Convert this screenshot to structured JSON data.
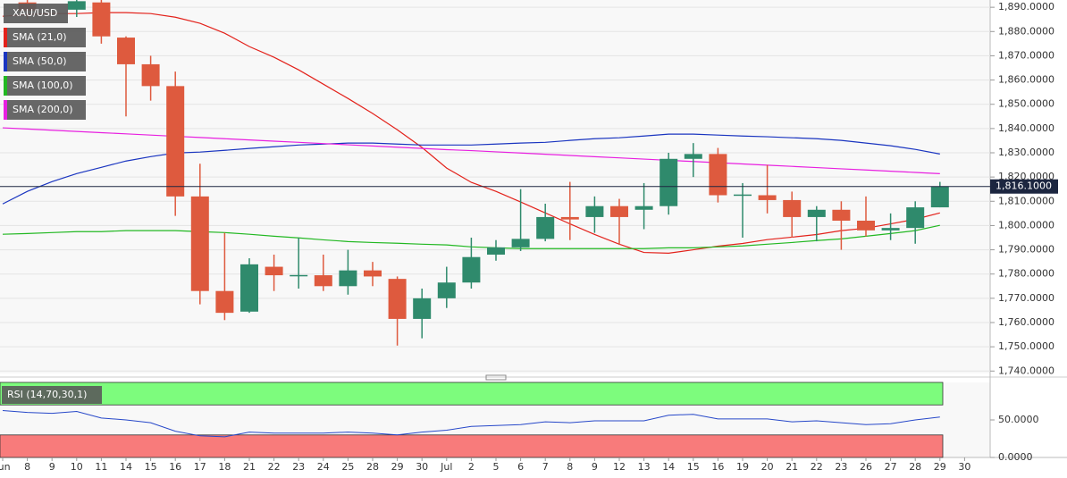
{
  "chart_data": [
    {
      "type": "candlestick",
      "symbol": "XAU/USD",
      "categories": [
        "Jun",
        "8",
        "9",
        "10",
        "11",
        "14",
        "15",
        "16",
        "17",
        "18",
        "21",
        "22",
        "23",
        "24",
        "25",
        "28",
        "29",
        "30",
        "Jul",
        "2",
        "5",
        "6",
        "7",
        "8",
        "9",
        "12",
        "13",
        "14",
        "15",
        "16",
        "19",
        "20",
        "21",
        "22",
        "23",
        "26",
        "27",
        "28",
        "29",
        "30"
      ],
      "open": [
        null,
        1892,
        null,
        1889,
        1892,
        1877.5,
        1866.5,
        1857.5,
        1812,
        1773,
        1764.5,
        1783,
        1779.5,
        1779.5,
        1775,
        1781.5,
        1778,
        1761.5,
        1770,
        1776.5,
        1788,
        1791,
        1794.5,
        1803.5,
        1803.5,
        1808,
        1806.5,
        1808,
        1827.5,
        1829.5,
        1812.5,
        1812.5,
        1810.5,
        1803.5,
        1806.5,
        1802,
        1798,
        1799,
        1807.5,
        null
      ],
      "high": [
        null,
        1893,
        null,
        1893,
        1893,
        1878,
        1870,
        1863.5,
        1825.5,
        1797,
        1786.5,
        1788,
        1795,
        1788,
        1790,
        1785,
        1779,
        1774,
        1783,
        1795,
        1794,
        1815,
        1809,
        1818,
        1812,
        1811,
        1817.5,
        1830,
        1834,
        1832,
        1817.5,
        1825,
        1814,
        1808,
        1810,
        1812,
        1805,
        1810,
        1818,
        null
      ],
      "low": [
        null,
        1885,
        null,
        1886,
        1875,
        1845,
        1851.5,
        1804,
        1767.5,
        1761,
        1764,
        1773,
        1774,
        1773,
        1771.5,
        1775,
        1750.5,
        1753.5,
        1766,
        1774,
        1785.5,
        1789.5,
        1793.5,
        1794,
        1797,
        1792,
        1798.5,
        1804.5,
        1820,
        1809.5,
        1795,
        1805,
        1795,
        1793.5,
        1790,
        1795.5,
        1794,
        1792.5,
        1807.5,
        null
      ],
      "close": [
        null,
        1888.5,
        null,
        1892.5,
        1878,
        1866.5,
        1857.5,
        1812,
        1773,
        1764,
        1784,
        1779.5,
        1779.6,
        1775,
        1781.5,
        1779,
        1761.5,
        1770,
        1776.5,
        1787,
        1791,
        1794.5,
        1803.5,
        1802.5,
        1808,
        1803.5,
        1808,
        1827.5,
        1829.5,
        1812.5,
        1812.8,
        1810.5,
        1803.5,
        1806.5,
        1802,
        1798,
        1799,
        1807.5,
        1816.1,
        null
      ],
      "up_color": "#2f8a6c",
      "down_color": "#de5a3e",
      "overlays": [
        {
          "name": "SMA (21,0)",
          "color": "#e3221b",
          "values": [
            1886.3,
            1887,
            1887.4,
            1887.4,
            1887.8,
            1887.8,
            1887.4,
            1885.9,
            1883.4,
            1879.3,
            1873.8,
            1869.4,
            1864.2,
            1858.3,
            1852.4,
            1846.2,
            1839.5,
            1832.2,
            1823.7,
            1817.8,
            1814.1,
            1809.7,
            1805.2,
            1800.7,
            1796.3,
            1792.3,
            1788.9,
            1788.6,
            1790,
            1791.5,
            1792.6,
            1794.2,
            1795.2,
            1796.3,
            1797.9,
            1798.9,
            1800.7,
            1802.6,
            1805.2,
            null
          ]
        },
        {
          "name": "SMA (50,0)",
          "color": "#1a35c0",
          "values": [
            1808.9,
            1814.1,
            1818.1,
            1821.4,
            1824,
            1826.6,
            1828.4,
            1829.9,
            1830.3,
            1831,
            1831.8,
            1832.5,
            1833.2,
            1833.6,
            1834,
            1834,
            1833.6,
            1833.2,
            1833.2,
            1833.2,
            1833.6,
            1834,
            1834.3,
            1835.1,
            1835.8,
            1836.2,
            1836.9,
            1837.7,
            1837.7,
            1837.3,
            1836.9,
            1836.6,
            1836.2,
            1835.8,
            1835.1,
            1834,
            1832.9,
            1831.4,
            1829.5,
            null
          ]
        },
        {
          "name": "SMA (100,0)",
          "color": "#22b822",
          "values": [
            1796.4,
            1796.7,
            1797.1,
            1797.5,
            1797.5,
            1797.9,
            1797.9,
            1797.9,
            1797.5,
            1797.1,
            1796.4,
            1795.6,
            1794.9,
            1794.1,
            1793.4,
            1793,
            1792.7,
            1792.3,
            1792,
            1791.2,
            1790.8,
            1790.5,
            1790.5,
            1790.5,
            1790.5,
            1790.5,
            1790.5,
            1790.8,
            1790.8,
            1791.2,
            1791.6,
            1792.3,
            1793,
            1793.8,
            1794.5,
            1795.6,
            1796.7,
            1797.9,
            1800.1,
            null
          ]
        },
        {
          "name": "SMA (200,0)",
          "color": "#e820e0",
          "values": [
            1840.3,
            1839.8,
            1839.3,
            1838.8,
            1838.3,
            1837.8,
            1837.3,
            1836.8,
            1836.3,
            1835.8,
            1835.3,
            1834.8,
            1834.3,
            1833.8,
            1833.3,
            1832.8,
            1832.3,
            1831.8,
            1831.3,
            1830.9,
            1830.4,
            1829.9,
            1829.4,
            1828.9,
            1828.4,
            1827.9,
            1827.4,
            1826.9,
            1826.4,
            1825.9,
            1825.4,
            1824.9,
            1824.4,
            1823.9,
            1823.4,
            1822.9,
            1822.4,
            1821.9,
            1821.4,
            null
          ]
        }
      ],
      "ylim": [
        1739,
        1893
      ],
      "yticks": [
        {
          "value": 1740,
          "label": "1,740.0000"
        },
        {
          "value": 1750,
          "label": "1,750.0000"
        },
        {
          "value": 1760,
          "label": "1,760.0000"
        },
        {
          "value": 1770,
          "label": "1,770.0000"
        },
        {
          "value": 1780,
          "label": "1,780.0000"
        },
        {
          "value": 1790,
          "label": "1,790.0000"
        },
        {
          "value": 1800,
          "label": "1,800.0000"
        },
        {
          "value": 1810,
          "label": "1,810.0000"
        },
        {
          "value": 1820,
          "label": "1,820.0000"
        },
        {
          "value": 1830,
          "label": "1,830.0000"
        },
        {
          "value": 1840,
          "label": "1,840.0000"
        },
        {
          "value": 1850,
          "label": "1,850.0000"
        },
        {
          "value": 1860,
          "label": "1,860.0000"
        },
        {
          "value": 1870,
          "label": "1,870.0000"
        },
        {
          "value": 1880,
          "label": "1,880.0000"
        },
        {
          "value": 1890,
          "label": "1,890.0000"
        }
      ],
      "last_price": {
        "value": 1816.1,
        "label": "1,816.1000"
      },
      "grid": true
    },
    {
      "type": "line",
      "name": "RSI (14,70,30,1)",
      "color": "#2748c9",
      "values": [
        62.5,
        60,
        58.8,
        61.3,
        52.5,
        50,
        46.3,
        35,
        28.8,
        27.5,
        33.8,
        32.5,
        32.5,
        32.5,
        33.8,
        32.5,
        30,
        33.8,
        36.3,
        41.3,
        42.5,
        43.8,
        47.5,
        46.3,
        48.8,
        48.8,
        48.8,
        56.3,
        57.5,
        51.3,
        51.3,
        51.3,
        47.5,
        48.8,
        46.3,
        43.8,
        45,
        50,
        53.8,
        null
      ],
      "bands": [
        {
          "from": 70,
          "to": 100,
          "color": "#7dfc7d"
        },
        {
          "from": 0,
          "to": 30,
          "color": "#f87b7b"
        }
      ],
      "ylim": [
        0,
        100
      ],
      "yticks": [
        {
          "value": 0,
          "label": "0.0000"
        },
        {
          "value": 50,
          "label": "50.0000"
        }
      ]
    }
  ]
}
